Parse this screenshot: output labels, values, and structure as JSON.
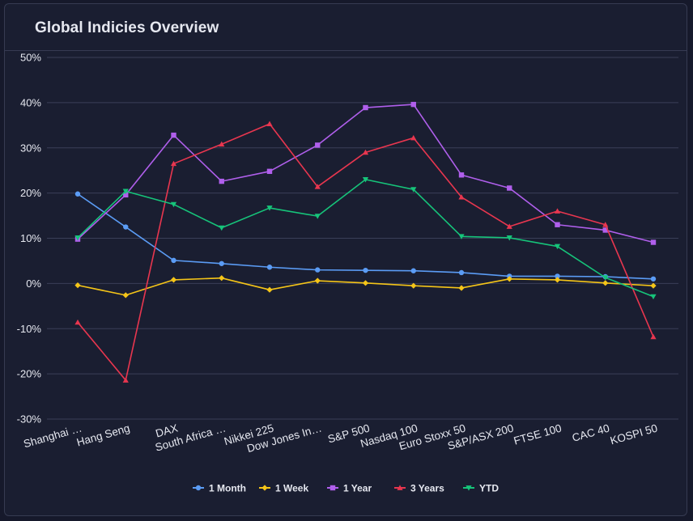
{
  "panel": {
    "title": "Global Indicies Overview"
  },
  "chart_data": {
    "type": "line",
    "title": "Global Indicies Overview",
    "xlabel": "",
    "ylabel": "",
    "ylim": [
      -30,
      50
    ],
    "y_ticks": [
      "50%",
      "40%",
      "30%",
      "20%",
      "10%",
      "0%",
      "-10%",
      "-20%",
      "-30%"
    ],
    "y_tick_values": [
      50,
      40,
      30,
      20,
      10,
      0,
      -10,
      -20,
      -30
    ],
    "grid": true,
    "legend_position": "bottom-center",
    "categories": [
      "Shanghai …",
      "Hang Seng",
      "DAX",
      "South Africa …",
      "Nikkei 225",
      "Dow Jones In…",
      "S&P 500",
      "Nasdaq 100",
      "Euro Stoxx 50",
      "S&P/ASX 200",
      "FTSE 100",
      "CAC 40",
      "KOSPI 50"
    ],
    "series": [
      {
        "name": "1 Month",
        "color": "#5b9cf5",
        "marker": "circle",
        "values": [
          19.8,
          12.5,
          5.1,
          4.4,
          3.6,
          3.0,
          2.9,
          2.8,
          2.4,
          1.6,
          1.6,
          1.5,
          1.0
        ]
      },
      {
        "name": "1 Week",
        "color": "#f5c518",
        "marker": "diamond",
        "values": [
          -0.4,
          -2.6,
          0.8,
          1.2,
          -1.4,
          0.6,
          0.1,
          -0.5,
          -1.0,
          1.0,
          0.8,
          0.1,
          -0.5
        ]
      },
      {
        "name": "1 Year",
        "color": "#b05fec",
        "marker": "square",
        "values": [
          9.8,
          19.6,
          32.8,
          22.6,
          24.8,
          30.6,
          38.9,
          39.6,
          24.0,
          21.1,
          13.0,
          11.8,
          9.1
        ]
      },
      {
        "name": "3 Years",
        "color": "#e8364f",
        "marker": "triangle",
        "values": [
          -8.6,
          -21.4,
          26.5,
          30.8,
          35.3,
          21.4,
          29.0,
          32.2,
          19.1,
          12.6,
          16.0,
          13.0,
          -11.8
        ]
      },
      {
        "name": "YTD",
        "color": "#16c47a",
        "marker": "triangle-down",
        "values": [
          10.1,
          20.4,
          17.5,
          12.3,
          16.7,
          14.9,
          23.0,
          20.8,
          10.4,
          10.1,
          8.2,
          1.3,
          -2.9
        ]
      }
    ]
  }
}
